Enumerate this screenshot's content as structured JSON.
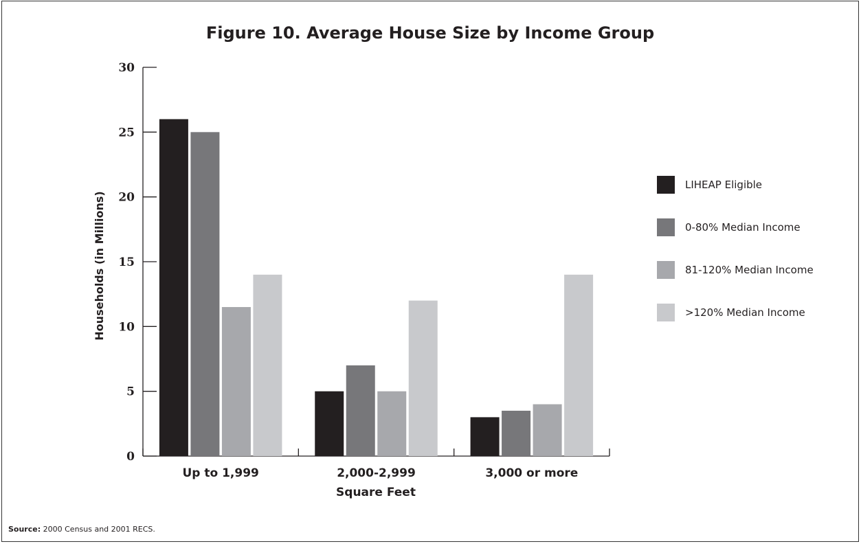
{
  "chart_data": {
    "type": "bar",
    "title": "Figure 10. Average House Size by Income Group",
    "xlabel": "Square Feet",
    "ylabel": "Households (in Millions)",
    "ylim": [
      0,
      30
    ],
    "yticks": [
      "0",
      "5",
      "10",
      "15",
      "20",
      "25",
      "30"
    ],
    "categories": [
      "Up to 1,999",
      "2,000-2,999",
      "3,000 or more"
    ],
    "series": [
      {
        "name": "LIHEAP Eligible",
        "color": "#231f20",
        "values": [
          26,
          5,
          3
        ]
      },
      {
        "name": "0-80% Median Income",
        "color": "#77777a",
        "values": [
          25,
          7,
          3.5
        ]
      },
      {
        "name": "81-120% Median Income",
        "color": "#a7a8ac",
        "values": [
          11.5,
          5,
          4
        ]
      },
      {
        "name": ">120% Median Income",
        "color": "#c8c9cc",
        "values": [
          14,
          12,
          14
        ]
      }
    ],
    "legend_position": "right",
    "grid": false
  },
  "source": {
    "label": "Source:",
    "text": "2000 Census and 2001 RECS."
  }
}
